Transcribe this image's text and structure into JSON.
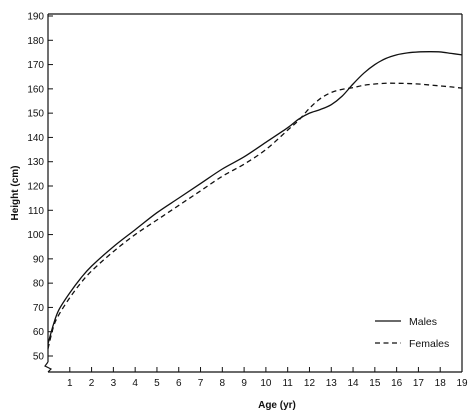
{
  "chart_data": {
    "type": "line",
    "title": "",
    "xlabel": "Age (yr)",
    "ylabel": "Height (cm)",
    "xlim": [
      0,
      19
    ],
    "ylim": [
      50,
      190
    ],
    "x_ticks": [
      1,
      2,
      3,
      4,
      5,
      6,
      7,
      8,
      9,
      10,
      11,
      12,
      13,
      14,
      15,
      16,
      17,
      18,
      19
    ],
    "y_ticks": [
      50,
      60,
      70,
      80,
      90,
      100,
      110,
      120,
      130,
      140,
      150,
      160,
      170,
      180,
      190
    ],
    "grid": false,
    "legend_position": "bottom-right",
    "series": [
      {
        "name": "Males",
        "style": "solid",
        "color": "#111111",
        "x": [
          0,
          0.25,
          0.5,
          1,
          1.5,
          2,
          3,
          4,
          5,
          6,
          7,
          8,
          9,
          10,
          11,
          11.5,
          12,
          12.5,
          13,
          13.5,
          14,
          14.5,
          15,
          15.5,
          16,
          16.5,
          17,
          17.5,
          18,
          18.5,
          19
        ],
        "y": [
          55,
          63,
          69,
          76,
          82,
          87,
          95,
          102,
          109,
          115,
          121,
          127,
          132,
          138,
          144,
          147.5,
          150,
          151.5,
          153.5,
          157,
          162,
          166.5,
          170,
          172.5,
          174,
          174.8,
          175.2,
          175.3,
          175.2,
          174.6,
          174
        ]
      },
      {
        "name": "Females",
        "style": "dashed",
        "color": "#111111",
        "x": [
          0,
          0.25,
          0.5,
          1,
          1.5,
          2,
          3,
          4,
          5,
          6,
          7,
          8,
          9,
          10,
          11,
          11.5,
          12,
          12.5,
          13,
          13.5,
          14,
          14.5,
          15,
          15.5,
          16,
          16.5,
          17,
          17.5,
          18,
          18.5,
          19
        ],
        "y": [
          53,
          62,
          67,
          74,
          80,
          85,
          93,
          100,
          106,
          112,
          118,
          124,
          129,
          135,
          143,
          147,
          152,
          156,
          158.5,
          159.8,
          160.5,
          161.5,
          162,
          162.3,
          162.3,
          162.2,
          162,
          161.6,
          161.2,
          160.8,
          160.3
        ]
      }
    ]
  }
}
